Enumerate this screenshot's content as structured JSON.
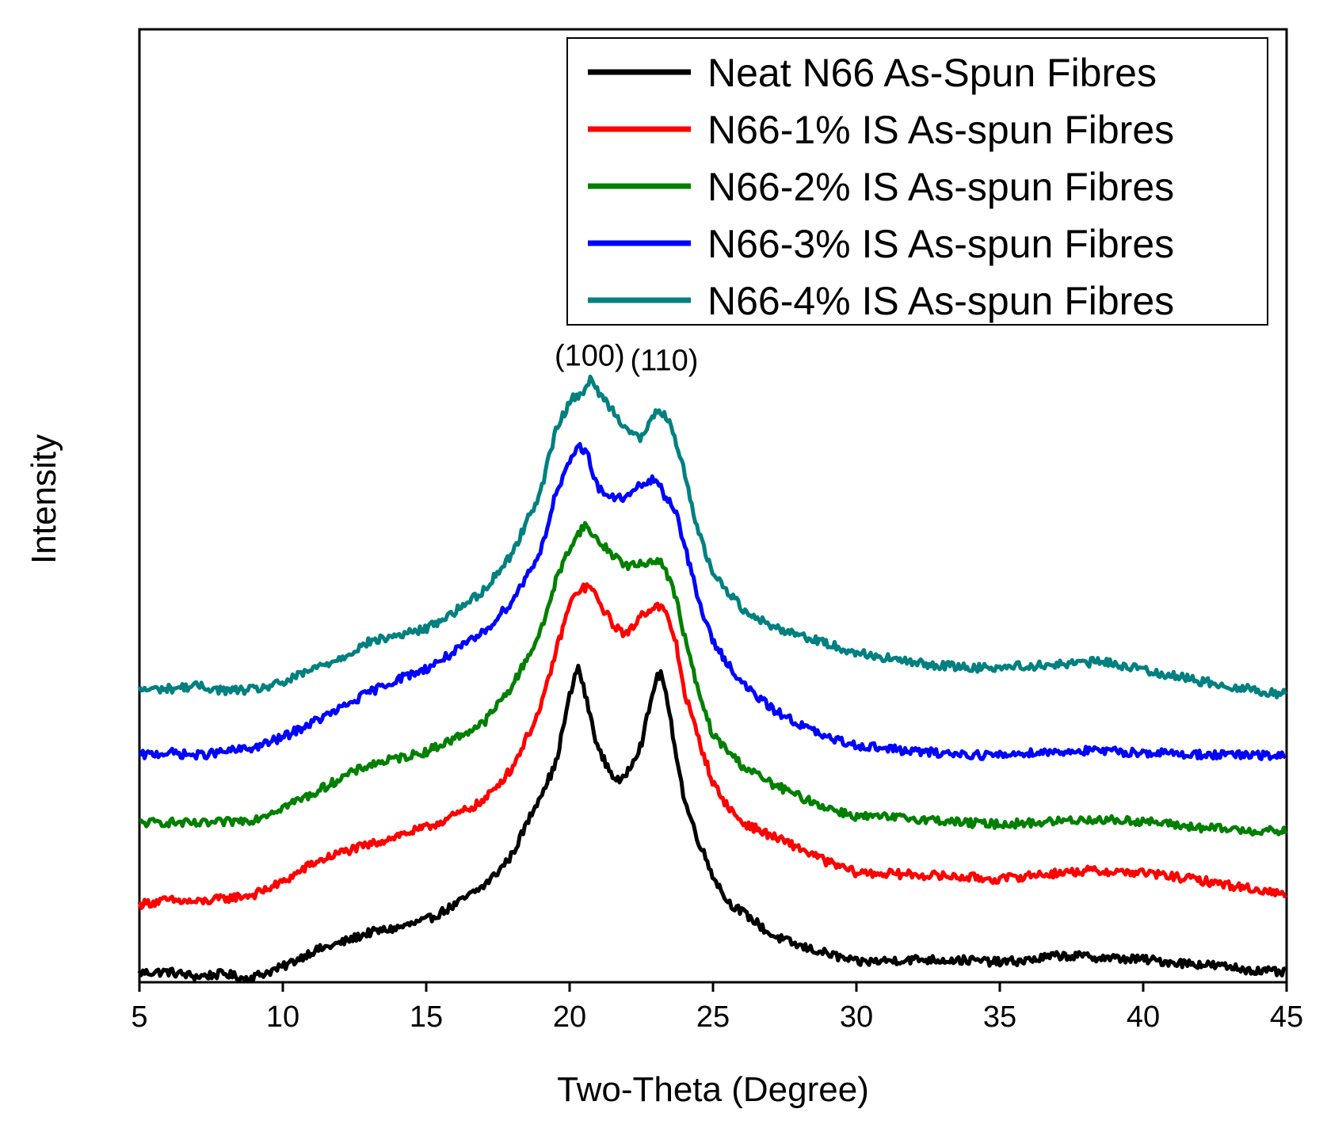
{
  "chart_data": {
    "type": "line",
    "title": "",
    "xlabel": "Two-Theta (Degree)",
    "ylabel": "Intensity",
    "xlim": [
      5,
      45
    ],
    "ylim": [
      0,
      100
    ],
    "xticks": [
      5,
      10,
      15,
      20,
      25,
      30,
      35,
      40,
      45
    ],
    "xtick_labels": [
      "5",
      "10",
      "15",
      "20",
      "25",
      "30",
      "35",
      "40",
      "45"
    ],
    "yticks_shown": false,
    "grid": false,
    "legend_position": "top-right",
    "annotations": [
      {
        "text": "(100)",
        "x": 20.7,
        "y": 63.2
      },
      {
        "text": "(110)",
        "x": 23.3,
        "y": 62.7
      }
    ],
    "series": [
      {
        "name": "Neat N66 As-Spun Fibres",
        "color": "#000000",
        "x": [
          5,
          6,
          7,
          8,
          8.6,
          9,
          10,
          11,
          12,
          13,
          14,
          15,
          16,
          17,
          17.5,
          18,
          18.5,
          19,
          19.5,
          20,
          20.3,
          20.5,
          21,
          21.5,
          21.8,
          22,
          22.5,
          23,
          23.2,
          23.5,
          24,
          24.5,
          25,
          25.5,
          26,
          26.5,
          27,
          28,
          29,
          30,
          32,
          34,
          35,
          36,
          37,
          38,
          39,
          40,
          41,
          42,
          43,
          44,
          45
        ],
        "values": [
          1.0,
          1.1,
          0.6,
          0.9,
          0.4,
          0.6,
          1.6,
          3.2,
          4.1,
          5.2,
          5.7,
          6.5,
          8.1,
          10.1,
          11.6,
          13.4,
          16.6,
          19.8,
          22.7,
          30.0,
          33.2,
          30.7,
          24.4,
          21.7,
          20.9,
          22.1,
          25.0,
          31.7,
          32.5,
          27.8,
          19.1,
          14.8,
          11.2,
          8.5,
          7.4,
          6.3,
          5.0,
          3.8,
          3.0,
          2.1,
          2.4,
          2.3,
          2.1,
          2.3,
          2.8,
          2.7,
          2.5,
          2.4,
          2.1,
          1.9,
          1.6,
          1.2,
          1.0
        ]
      },
      {
        "name": "N66-1% IS As-spun Fibres",
        "color": "#ff0000",
        "x": [
          5,
          6,
          7,
          8,
          9,
          10,
          11,
          12,
          13,
          14,
          15,
          16,
          17,
          18,
          19,
          19.5,
          20,
          20.3,
          20.7,
          21,
          21.5,
          22,
          22.5,
          23,
          23.3,
          23.7,
          24,
          24.5,
          25,
          25.5,
          26,
          27,
          28,
          29,
          30,
          32,
          34,
          35,
          36,
          38,
          40,
          42,
          44,
          45
        ],
        "values": [
          8.2,
          8.6,
          8.4,
          8.8,
          9.2,
          10.5,
          12.4,
          13.6,
          14.4,
          15.4,
          16.2,
          17.5,
          19.0,
          22.5,
          28.8,
          34.5,
          39.6,
          41.1,
          41.6,
          40.0,
          37.6,
          36.4,
          38.6,
          39.5,
          39.1,
          35.8,
          30.5,
          25.5,
          20.9,
          18.5,
          16.8,
          15.4,
          14.1,
          12.6,
          11.5,
          11.3,
          11.0,
          10.8,
          11.2,
          11.7,
          11.5,
          10.7,
          9.7,
          9.2
        ]
      },
      {
        "name": "N66-2% IS As-spun Fibres",
        "color": "#008000",
        "x": [
          5,
          6,
          7,
          8,
          9,
          10,
          11,
          12,
          13,
          14,
          15,
          16,
          17,
          18,
          19,
          19.5,
          20,
          20.5,
          21,
          21.5,
          22,
          22.5,
          23,
          23.3,
          23.7,
          24,
          24.5,
          25,
          26,
          27,
          28,
          29,
          30,
          32,
          34,
          35,
          36,
          38,
          40,
          42,
          44,
          45
        ],
        "values": [
          16.7,
          16.8,
          16.6,
          16.8,
          17.1,
          18.4,
          19.7,
          21.4,
          22.8,
          23.5,
          24.2,
          25.6,
          27.2,
          31.1,
          36.8,
          42.0,
          45.6,
          48.0,
          46.3,
          44.9,
          43.7,
          43.8,
          44.4,
          43.7,
          40.4,
          36.4,
          30.3,
          25.9,
          22.8,
          20.9,
          19.5,
          18.3,
          17.4,
          17.2,
          16.7,
          16.6,
          16.7,
          17.1,
          16.9,
          16.2,
          15.9,
          15.8
        ]
      },
      {
        "name": "N66-3% IS As-spun Fibres",
        "color": "#0000ff",
        "x": [
          5,
          6,
          7,
          8,
          9,
          10,
          11,
          12,
          13,
          14,
          15,
          16,
          17,
          18,
          19,
          19.5,
          20,
          20.3,
          20.6,
          21,
          21.5,
          22,
          22.5,
          23,
          23.3,
          23.7,
          24,
          24.5,
          25,
          26,
          27,
          28,
          29,
          30,
          32,
          34,
          35,
          36,
          38,
          40,
          42,
          44,
          45
        ],
        "values": [
          23.8,
          24.1,
          23.8,
          24.2,
          24.6,
          25.7,
          27.2,
          28.7,
          30.4,
          31.8,
          32.9,
          34.7,
          36.7,
          40.0,
          45.3,
          51.1,
          54.4,
          56.4,
          55.6,
          51.8,
          50.8,
          50.9,
          52.2,
          52.8,
          51.1,
          49.6,
          45.9,
          40.0,
          35.7,
          31.4,
          28.8,
          27.1,
          25.6,
          24.9,
          24.2,
          23.9,
          23.8,
          24.1,
          24.3,
          24.1,
          23.9,
          23.8,
          23.7
        ]
      },
      {
        "name": "N66-4% IS As-spun Fibres",
        "color": "#008080",
        "x": [
          5,
          6,
          7,
          8,
          9,
          10,
          11,
          12,
          13,
          14,
          15,
          16,
          17,
          18,
          19,
          19.5,
          20,
          20.5,
          20.7,
          21,
          21.5,
          22,
          22.5,
          23,
          23.2,
          23.5,
          24,
          24.5,
          25,
          26,
          27,
          28,
          29,
          30,
          32,
          34,
          36,
          38,
          38.5,
          40,
          42,
          44,
          45
        ],
        "values": [
          30.7,
          30.8,
          31.1,
          30.6,
          30.7,
          31.4,
          32.8,
          34.0,
          35.7,
          36.4,
          37.1,
          38.9,
          41.1,
          45.0,
          51.6,
          57.7,
          61.0,
          62.1,
          63.2,
          62.0,
          60.0,
          58.1,
          57.0,
          59.8,
          60.0,
          58.5,
          53.6,
          47.1,
          42.9,
          39.3,
          37.4,
          36.5,
          35.5,
          34.6,
          33.5,
          33.0,
          33.2,
          33.5,
          33.7,
          32.8,
          31.6,
          30.6,
          30.2
        ]
      }
    ]
  }
}
